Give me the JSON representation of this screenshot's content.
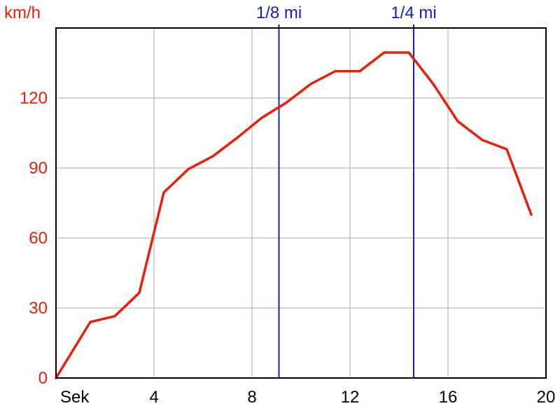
{
  "chart_data": {
    "type": "line",
    "ylabel": "km/h",
    "xlabel": "Sek",
    "xlim": [
      0,
      20
    ],
    "ylim": [
      0,
      150
    ],
    "x_ticks": [
      {
        "value": 4,
        "label": "4"
      },
      {
        "value": 8,
        "label": "8"
      },
      {
        "value": 12,
        "label": "12"
      },
      {
        "value": 16,
        "label": "16"
      },
      {
        "value": 20,
        "label": "20"
      }
    ],
    "y_ticks": [
      {
        "value": 0,
        "label": "0"
      },
      {
        "value": 30,
        "label": "30"
      },
      {
        "value": 60,
        "label": "60"
      },
      {
        "value": 90,
        "label": "90"
      },
      {
        "value": 120,
        "label": "120"
      }
    ],
    "grid": true,
    "series": [
      {
        "color": "#e8200a",
        "x": [
          0,
          1.4,
          2.4,
          3.4,
          4.4,
          5.4,
          6.4,
          7.4,
          8.4,
          9.4,
          10.4,
          11.4,
          12.4,
          13.4,
          14.4,
          15.4,
          16.4,
          17.4,
          18.4,
          19.4
        ],
        "y": [
          0,
          24,
          26.5,
          36.5,
          79.5,
          89.5,
          95,
          103,
          111.5,
          118,
          126,
          131.5,
          131.5,
          139.5,
          139.5,
          126,
          110,
          102,
          98,
          70
        ]
      }
    ],
    "markers": [
      {
        "x": 9.1,
        "label": "1/8 mi",
        "color": "#1a1acc"
      },
      {
        "x": 14.6,
        "label": "1/4 mi",
        "color": "#1a1acc"
      }
    ],
    "colors": {
      "axis_text": "#e8200a",
      "grid": "#aaaaaa",
      "frame": "#000000"
    }
  }
}
